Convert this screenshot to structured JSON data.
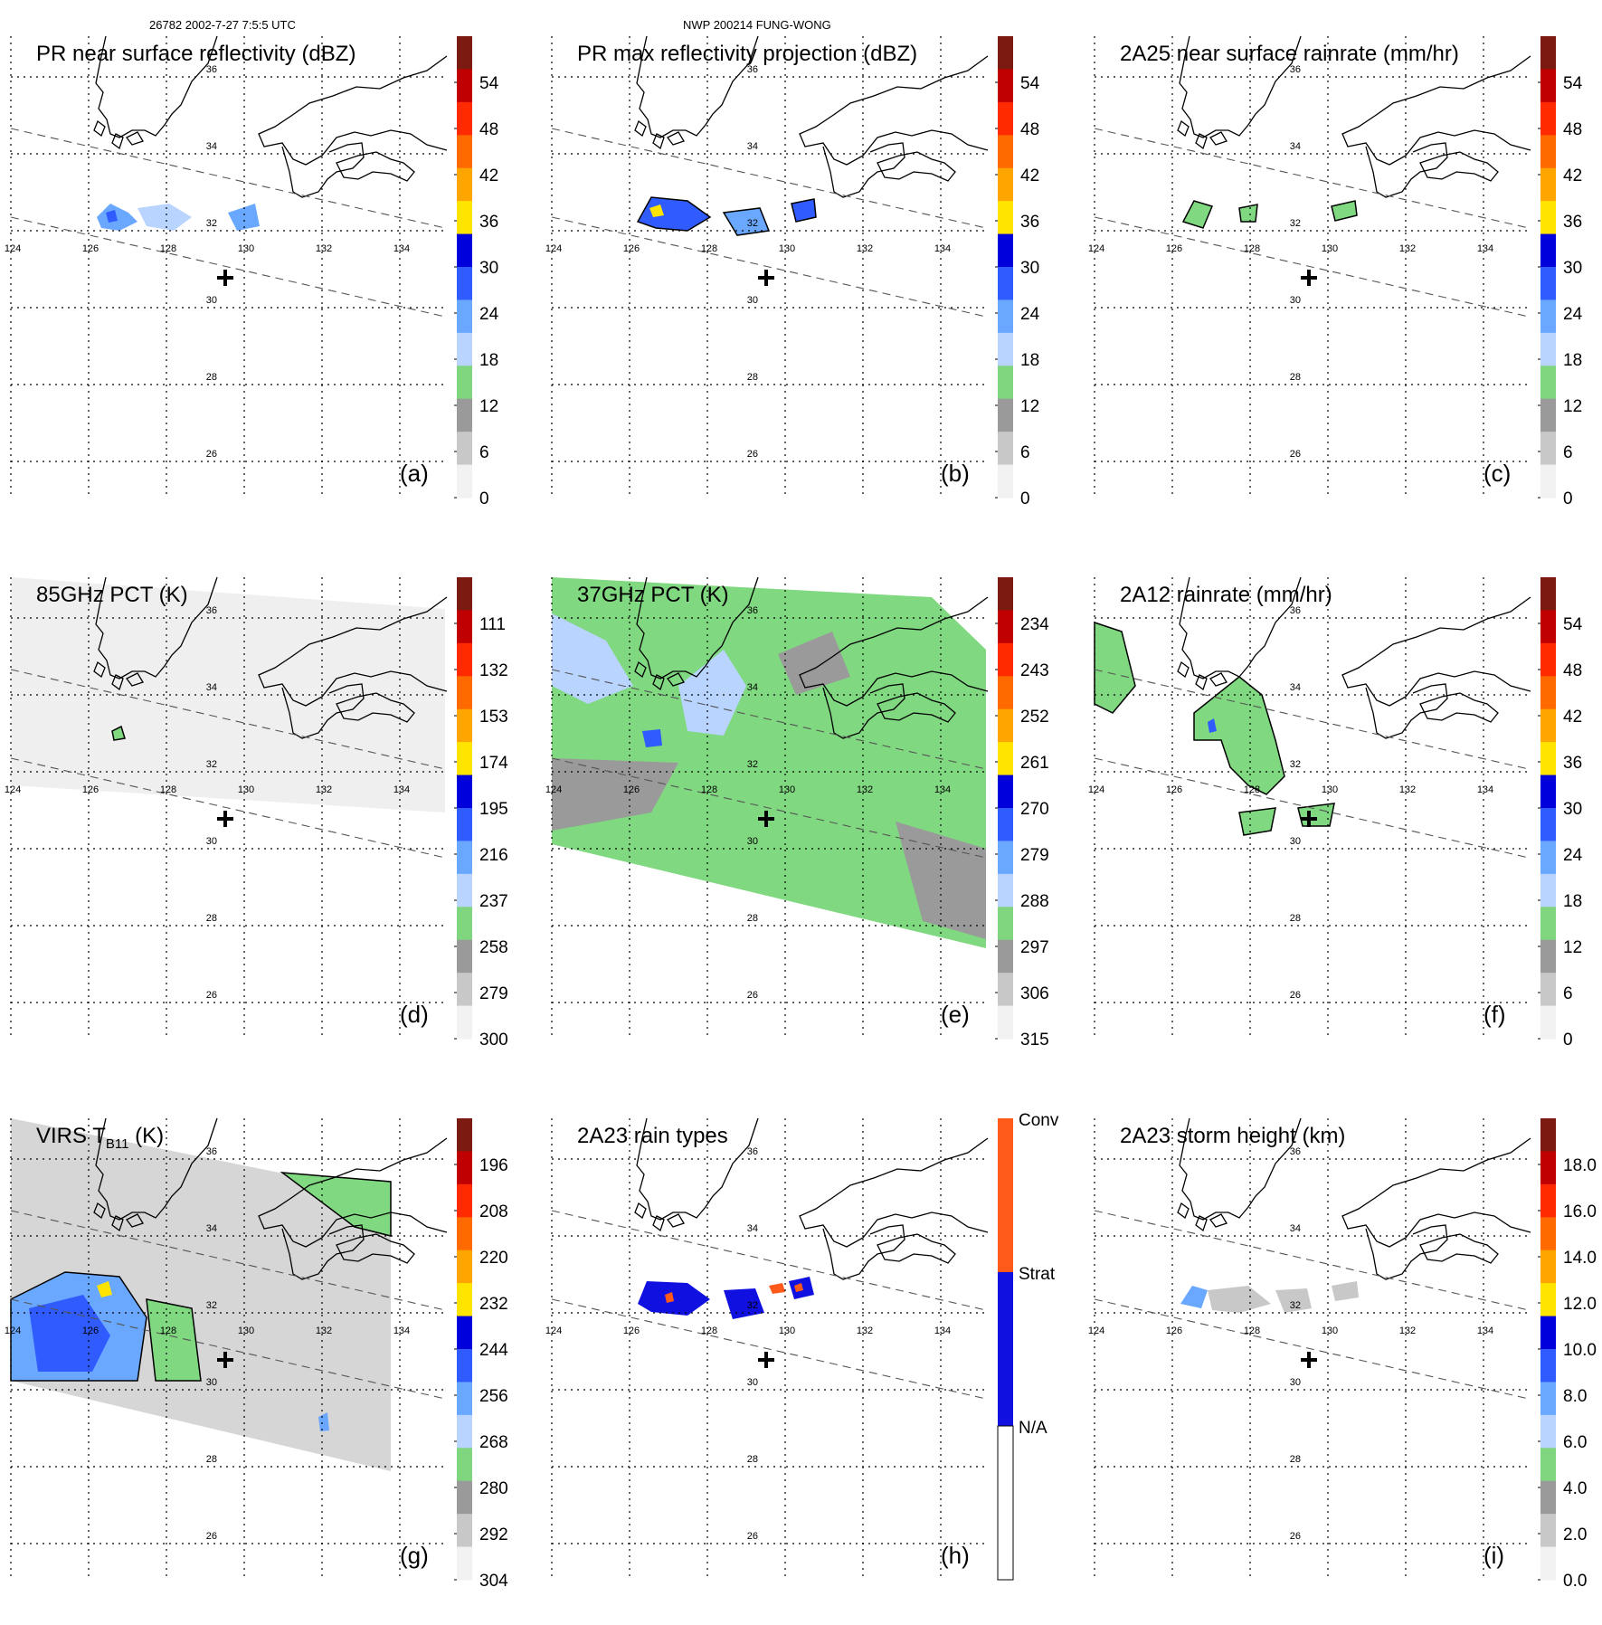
{
  "header": {
    "orbit_time": "26782 2002-7-27 7:5:5 UTC",
    "storm": "NWP 200214 FUNG-WONG"
  },
  "axes": {
    "lon_labels": [
      "124",
      "126",
      "128",
      "130",
      "132",
      "134"
    ],
    "lat_labels": [
      "36",
      "34",
      "32",
      "30",
      "28",
      "26"
    ]
  },
  "colors": {
    "rain_scale": [
      "#f2f2f2",
      "#c8c8c8",
      "#9a9a9a",
      "#7fd67f",
      "#b8d4ff",
      "#6aa8ff",
      "#2f5bff",
      "#0000dd",
      "#ffe400",
      "#ffa500",
      "#ff6a00",
      "#ff2a00",
      "#c00000",
      "#7a1a10"
    ],
    "gray_map": "#ececec",
    "green_rain": "#80d880",
    "conv": "#ff5a1a",
    "strat": "#1010e0"
  },
  "panels": [
    {
      "id": "a",
      "title": "PR near surface reflectivity (dBZ)",
      "label": "(a)",
      "cbar": [
        "54",
        "48",
        "42",
        "36",
        "30",
        "24",
        "18",
        "12",
        "6",
        "0"
      ]
    },
    {
      "id": "b",
      "title": "PR max reflectivity projection (dBZ)",
      "label": "(b)",
      "cbar": [
        "54",
        "48",
        "42",
        "36",
        "30",
        "24",
        "18",
        "12",
        "6",
        "0"
      ]
    },
    {
      "id": "c",
      "title": "2A25 near surface rainrate (mm/hr)",
      "label": "(c)",
      "cbar": [
        "54",
        "48",
        "42",
        "36",
        "30",
        "24",
        "18",
        "12",
        "6",
        "0"
      ]
    },
    {
      "id": "d",
      "title": "85GHz PCT (K)",
      "label": "(d)",
      "cbar": [
        "111",
        "132",
        "153",
        "174",
        "195",
        "216",
        "237",
        "258",
        "279",
        "300"
      ]
    },
    {
      "id": "e",
      "title": "37GHz PCT (K)",
      "label": "(e)",
      "cbar": [
        "234",
        "243",
        "252",
        "261",
        "270",
        "279",
        "288",
        "297",
        "306",
        "315"
      ]
    },
    {
      "id": "f",
      "title": "2A12 rainrate (mm/hr)",
      "label": "(f)",
      "cbar": [
        "54",
        "48",
        "42",
        "36",
        "30",
        "24",
        "18",
        "12",
        "6",
        "0"
      ]
    },
    {
      "id": "g",
      "title": "VIRS T",
      "title_sub": "B11",
      "title_tail": " (K)",
      "label": "(g)",
      "cbar": [
        "196",
        "208",
        "220",
        "232",
        "244",
        "256",
        "268",
        "280",
        "292",
        "304"
      ]
    },
    {
      "id": "h",
      "title": "2A23 rain types",
      "label": "(h)",
      "cbar": [
        "Conv",
        "Strat",
        "N/A"
      ]
    },
    {
      "id": "i",
      "title": "2A23 storm height (km)",
      "label": "(i)",
      "cbar": [
        "18.0",
        "16.0",
        "14.0",
        "12.0",
        "10.0",
        "8.0",
        "6.0",
        "4.0",
        "2.0",
        "0.0"
      ]
    }
  ]
}
